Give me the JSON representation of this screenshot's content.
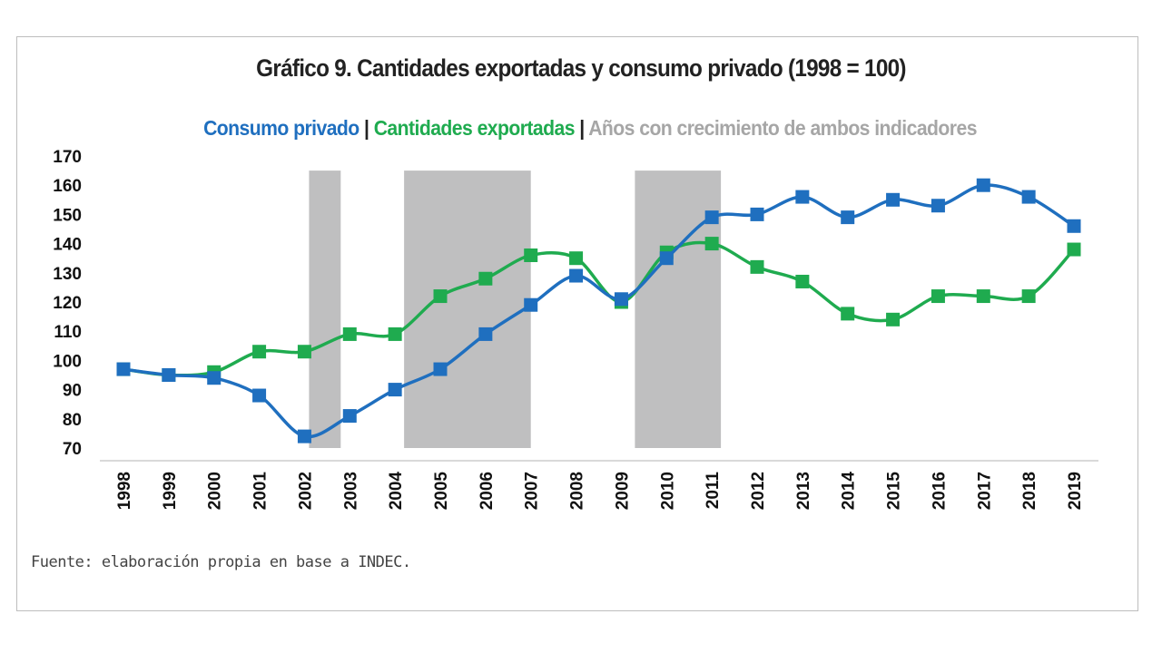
{
  "chart_data": {
    "type": "line",
    "title": "Gráfico 9. Cantidades exportadas y consumo privado (1998 = 100)",
    "legend": {
      "placement": "top",
      "items": [
        {
          "label": "Consumo privado",
          "color": "#1f6fbf"
        },
        {
          "label": "Cantidades exportadas",
          "color": "#1fab4f"
        },
        {
          "label": "Años con crecimiento de ambos indicadores",
          "color": "#a6a6a6"
        }
      ],
      "separator": "|"
    },
    "xlabel": "",
    "ylabel": "",
    "ylim": [
      70,
      170
    ],
    "yticks": [
      70,
      80,
      90,
      100,
      110,
      120,
      130,
      140,
      150,
      160,
      170
    ],
    "grid": false,
    "categories": [
      "1998",
      "1999",
      "2000",
      "2001",
      "2002",
      "2003",
      "2004",
      "2005",
      "2006",
      "2007",
      "2008",
      "2009",
      "2010",
      "2011",
      "2012",
      "2013",
      "2014",
      "2015",
      "2016",
      "2017",
      "2018",
      "2019"
    ],
    "series": [
      {
        "name": "Consumo privado",
        "color": "#1f6fbf",
        "values": [
          97,
          95,
          94,
          88,
          74,
          81,
          90,
          97,
          109,
          119,
          129,
          121,
          135,
          149,
          150,
          156,
          149,
          155,
          153,
          160,
          156,
          146
        ]
      },
      {
        "name": "Cantidades exportadas",
        "color": "#1fab4f",
        "values": [
          97,
          95,
          96,
          103,
          103,
          109,
          109,
          122,
          128,
          136,
          135,
          120,
          137,
          140,
          132,
          127,
          116,
          114,
          122,
          122,
          122,
          138
        ]
      }
    ],
    "shaded_periods": [
      {
        "from": 2002.1,
        "to": 2002.8
      },
      {
        "from": 2004.2,
        "to": 2007.0
      },
      {
        "from": 2009.3,
        "to": 2011.2
      }
    ],
    "shade_range": [
      70,
      165
    ],
    "shade_color": "#bfbfc0"
  },
  "source": "Fuente: elaboración propia en base a INDEC."
}
